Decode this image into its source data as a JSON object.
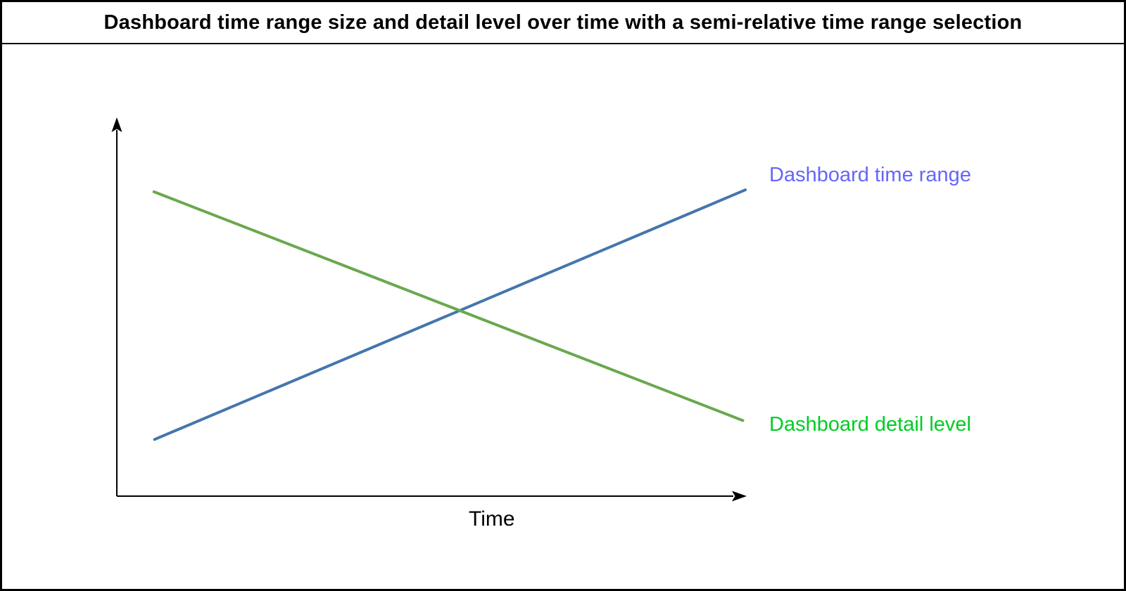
{
  "title": "Dashboard time range size and detail level over time with a semi-relative time range selection",
  "chart_data": {
    "type": "line",
    "title": "Dashboard time range size and detail level over time with a semi-relative time range selection",
    "xlabel": "Time",
    "ylabel": "",
    "axes_color": "#000000",
    "grid": "off",
    "x_range_norm": [
      0,
      1
    ],
    "y_range_norm": [
      0,
      1
    ],
    "series": [
      {
        "name": "dashboard-time-range",
        "label": "Dashboard time range",
        "trend": "increasing",
        "line_color": "#4476ad",
        "label_color": "#6666fa",
        "points": [
          {
            "x": 0.06,
            "y": 0.15
          },
          {
            "x": 0.999,
            "y": 0.81
          }
        ]
      },
      {
        "name": "dashboard-detail-level",
        "label": "Dashboard detail level",
        "trend": "decreasing",
        "line_color": "#6aa84f",
        "label_color": "#00cc22",
        "points": [
          {
            "x": 0.059,
            "y": 0.805
          },
          {
            "x": 0.995,
            "y": 0.2
          }
        ]
      }
    ]
  }
}
